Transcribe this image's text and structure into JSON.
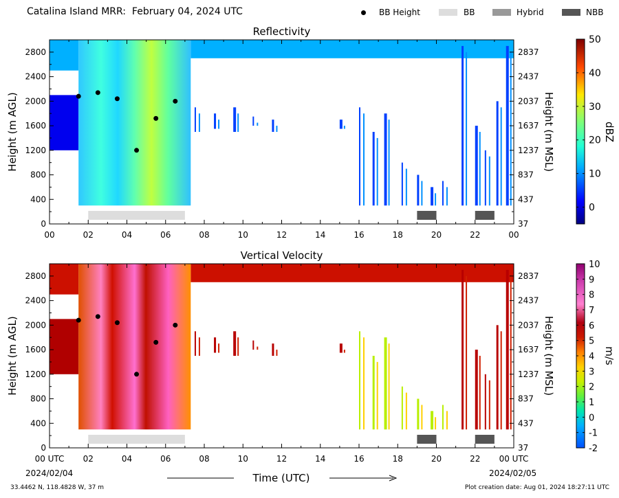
{
  "header": {
    "title": "Catalina Island MRR:  February 04, 2024 UTC",
    "legend": [
      {
        "label": "BB Height",
        "kind": "dot",
        "color": "#000000"
      },
      {
        "label": "BB",
        "kind": "box",
        "color": "#dddddd"
      },
      {
        "label": "Hybrid",
        "kind": "box",
        "color": "#999999"
      },
      {
        "label": "NBB",
        "kind": "box",
        "color": "#555555"
      }
    ]
  },
  "footer": {
    "time_label": "Time (UTC)",
    "date_start": "2024/02/04",
    "date_end": "2024/02/05",
    "location": "33.4462 N, 118.4828 W, 37 m",
    "creation": "Plot creation date: Aug 01, 2024 18:27:11 UTC"
  },
  "chart_data": [
    {
      "type": "heatmap",
      "title": "Reflectivity",
      "xlabel": "",
      "ylabel": "Height (m AGL)",
      "ylabel_right": "Height (m MSL)",
      "xlim": [
        0,
        24
      ],
      "ylim": [
        0,
        3000
      ],
      "x_ticks": [
        "00",
        "02",
        "04",
        "06",
        "08",
        "10",
        "12",
        "14",
        "16",
        "18",
        "20",
        "22",
        "00"
      ],
      "y_ticks": [
        0,
        400,
        800,
        1200,
        1600,
        2000,
        2400,
        2800
      ],
      "y_ticks_right": [
        "37",
        "437",
        "837",
        "1237",
        "1637",
        "2037",
        "2437",
        "2837"
      ],
      "colorbar": {
        "label": "dBZ",
        "range": [
          -5,
          50
        ],
        "ticks": [
          0,
          10,
          20,
          30,
          40,
          50
        ]
      },
      "bb_height_points": [
        {
          "x": 1.5,
          "y": 2080
        },
        {
          "x": 2.5,
          "y": 2140
        },
        {
          "x": 3.5,
          "y": 2040
        },
        {
          "x": 4.5,
          "y": 1200
        },
        {
          "x": 5.5,
          "y": 1720
        },
        {
          "x": 6.5,
          "y": 2000
        }
      ],
      "bb_bars": [
        {
          "type": "BB",
          "start": 2.0,
          "end": 7.0
        },
        {
          "type": "NBB",
          "start": 19.0,
          "end": 20.0
        },
        {
          "type": "NBB",
          "start": 22.0,
          "end": 23.0
        }
      ]
    },
    {
      "type": "heatmap",
      "title": "Vertical Velocity",
      "xlabel": "Time (UTC)",
      "ylabel": "Height (m AGL)",
      "ylabel_right": "Height (m MSL)",
      "xlim": [
        0,
        24
      ],
      "ylim": [
        0,
        3000
      ],
      "x_ticks": [
        "00 UTC",
        "02",
        "04",
        "06",
        "08",
        "10",
        "12",
        "14",
        "16",
        "18",
        "20",
        "22",
        "00 UTC"
      ],
      "y_ticks": [
        0,
        400,
        800,
        1200,
        1600,
        2000,
        2400,
        2800
      ],
      "y_ticks_right": [
        "37",
        "437",
        "837",
        "1237",
        "1637",
        "2037",
        "2437",
        "2837"
      ],
      "colorbar": {
        "label": "m/s",
        "range": [
          -2,
          10
        ],
        "ticks": [
          -2,
          -1,
          0,
          1,
          2,
          3,
          4,
          5,
          6,
          7,
          8,
          9,
          10
        ]
      },
      "bb_height_points": [
        {
          "x": 1.5,
          "y": 2080
        },
        {
          "x": 2.5,
          "y": 2140
        },
        {
          "x": 3.5,
          "y": 2040
        },
        {
          "x": 4.5,
          "y": 1200
        },
        {
          "x": 5.5,
          "y": 1720
        },
        {
          "x": 6.5,
          "y": 2000
        }
      ],
      "bb_bars": [
        {
          "type": "BB",
          "start": 2.0,
          "end": 7.0
        },
        {
          "type": "NBB",
          "start": 19.0,
          "end": 20.0
        },
        {
          "type": "NBB",
          "start": 22.0,
          "end": 23.0
        }
      ]
    }
  ]
}
